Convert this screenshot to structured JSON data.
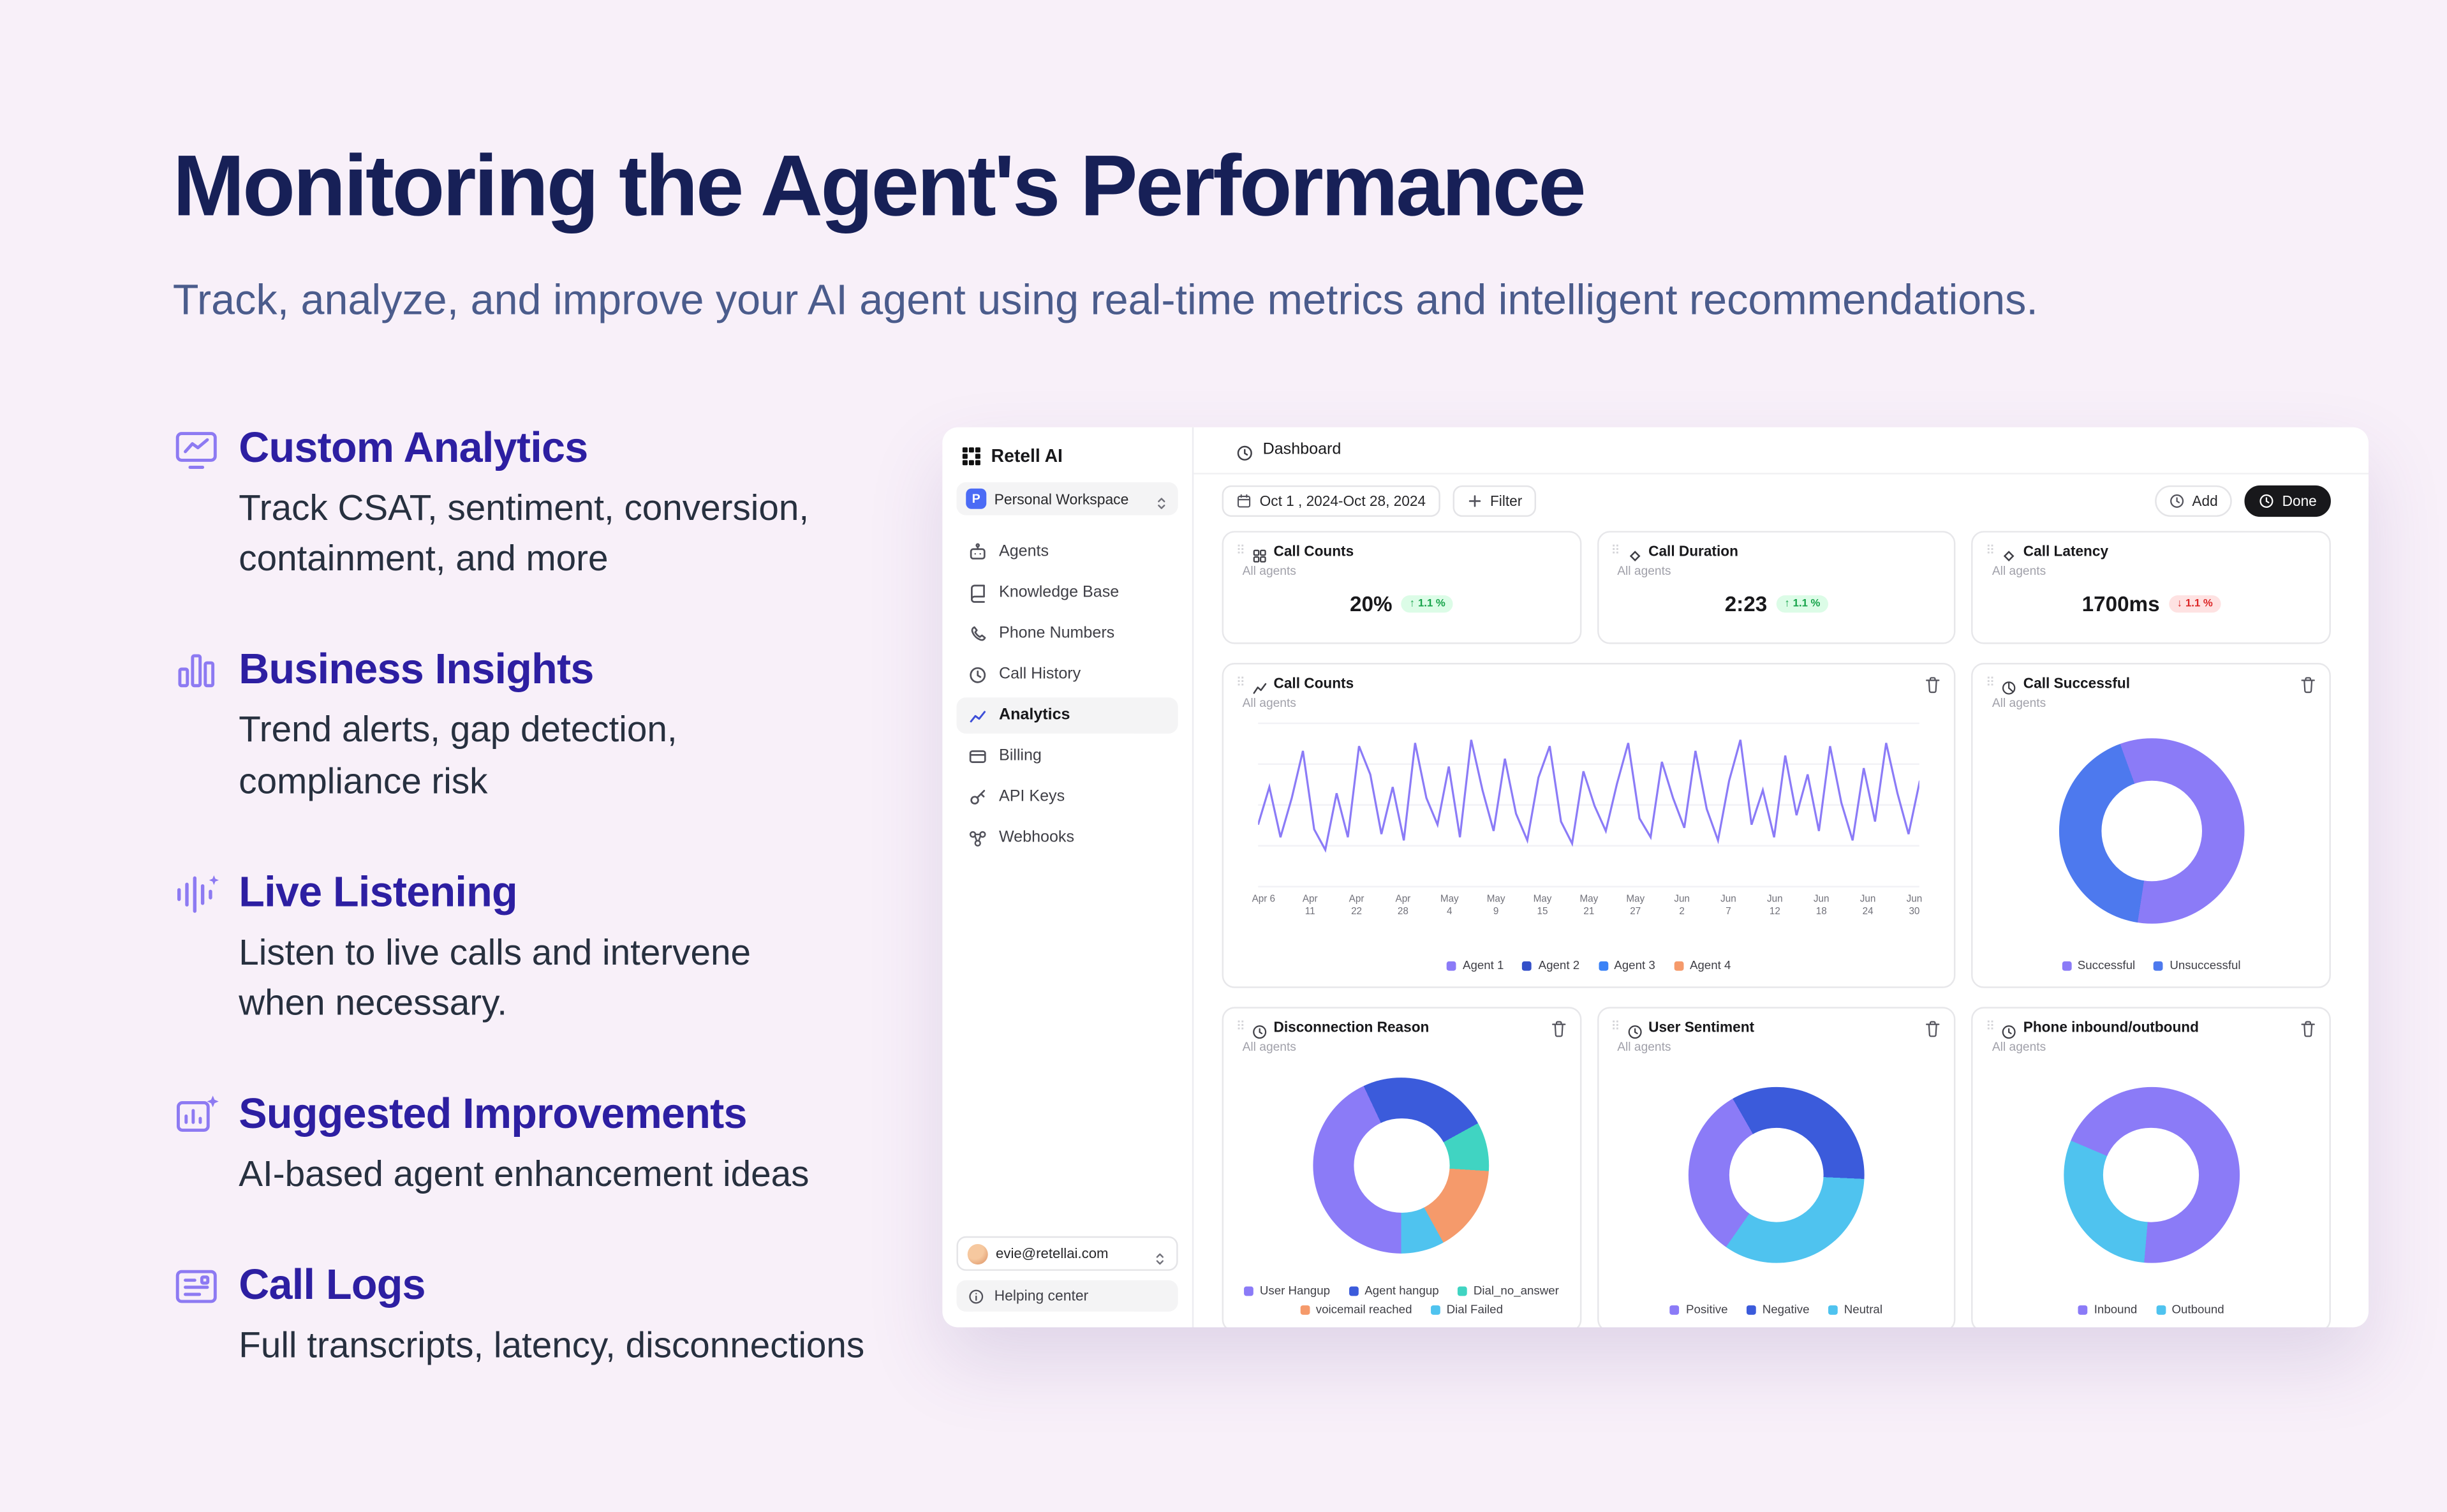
{
  "hero": {
    "title": "Monitoring the Agent's Performance",
    "subtitle": "Track, analyze, and improve your AI agent using real-time metrics and intelligent recommendations."
  },
  "features": [
    {
      "title": "Custom Analytics",
      "description": "Track CSAT, sentiment, conversion,\ncontainment, and more"
    },
    {
      "title": "Business Insights",
      "description": "Trend alerts, gap detection,\ncompliance risk"
    },
    {
      "title": "Live Listening",
      "description": "Listen to live calls and intervene\nwhen necessary."
    },
    {
      "title": "Suggested Improvements",
      "description": "AI-based agent enhancement ideas"
    },
    {
      "title": "Call Logs",
      "description": "Full transcripts, latency, disconnections"
    }
  ],
  "dashboard": {
    "brand": "Retell AI",
    "workspace": {
      "initial": "P",
      "name": "Personal Workspace"
    },
    "nav": [
      {
        "label": "Agents",
        "active": false
      },
      {
        "label": "Knowledge Base",
        "active": false
      },
      {
        "label": "Phone Numbers",
        "active": false
      },
      {
        "label": "Call History",
        "active": false
      },
      {
        "label": "Analytics",
        "active": true
      },
      {
        "label": "Billing",
        "active": false
      },
      {
        "label": "API Keys",
        "active": false
      },
      {
        "label": "Webhooks",
        "active": false
      }
    ],
    "account": {
      "email": "evie@retellai.com"
    },
    "help_label": "Helping center",
    "header": {
      "title": "Dashboard"
    },
    "toolbar": {
      "date_range": "Oct 1 , 2024-Oct 28, 2024",
      "filter_label": "Filter",
      "add_label": "Add",
      "done_label": "Done"
    },
    "stat_cards": [
      {
        "title": "Call Counts",
        "scope": "All agents",
        "value": "20%",
        "delta": "1.1 %",
        "trend": "up"
      },
      {
        "title": "Call Duration",
        "scope": "All agents",
        "value": "2:23",
        "delta": "1.1 %",
        "trend": "up"
      },
      {
        "title": "Call Latency",
        "scope": "All agents",
        "value": "1700ms",
        "delta": "1.1 %",
        "trend": "down"
      }
    ],
    "colors": {
      "accent_purple": "#8b7bf7",
      "positive_text": "#16a34a",
      "negative_text": "#dc2626"
    }
  },
  "chart_data": [
    {
      "type": "line",
      "title": "Call Counts",
      "scope": "All agents",
      "x_labels": [
        "Apr 6",
        "Apr 11",
        "Apr 22",
        "Apr 28",
        "May 4",
        "May 9",
        "May 15",
        "May 21",
        "May 27",
        "Jun 2",
        "Jun 7",
        "Jun 12",
        "Jun 18",
        "Jun 24",
        "Jun 30"
      ],
      "ylim": [
        0,
        100
      ],
      "grid": true,
      "legend_position": "bottom",
      "series": [
        {
          "name": "Agent 1",
          "color": "#8b7bf7",
          "values": [
            38,
            62,
            30,
            55,
            85,
            35,
            22,
            58,
            30,
            88,
            70,
            32,
            62,
            28,
            90,
            55,
            38,
            75,
            30,
            92,
            60,
            34,
            80,
            45,
            28,
            68,
            88,
            40,
            26,
            72,
            50,
            34,
            64,
            90,
            42,
            30,
            78,
            55,
            36,
            85,
            48,
            28,
            66,
            92,
            38,
            60,
            30,
            82,
            44,
            70,
            34,
            88,
            52,
            28,
            74,
            40,
            90,
            58,
            32,
            66
          ]
        },
        {
          "name": "Agent 2",
          "color": "#3450c9",
          "values": []
        },
        {
          "name": "Agent 3",
          "color": "#3b82f6",
          "values": []
        },
        {
          "name": "Agent 4",
          "color": "#f59a6b",
          "values": []
        }
      ]
    },
    {
      "type": "pie",
      "title": "Call Successful",
      "scope": "All agents",
      "rotate": 340,
      "legend_position": "bottom",
      "segments": [
        {
          "label": "Successful",
          "value": 58,
          "color": "#8b7bf7"
        },
        {
          "label": "Unsuccessful",
          "value": 42,
          "color": "#4d79ee"
        }
      ]
    },
    {
      "type": "pie",
      "title": "Disconnection Reason",
      "scope": "All agents",
      "rotate": 180,
      "legend_position": "bottom",
      "segments": [
        {
          "label": "User Hangup",
          "value": 43,
          "color": "#8b7bf7"
        },
        {
          "label": "Agent hangup",
          "value": 24,
          "color": "#3b5bdb"
        },
        {
          "label": "Dial_no_answer",
          "value": 9,
          "color": "#40d4c2"
        },
        {
          "label": "voicemail reached",
          "value": 16,
          "color": "#f59a6b"
        },
        {
          "label": "Dial Failed",
          "value": 8,
          "color": "#4fc3ef"
        }
      ]
    },
    {
      "type": "pie",
      "title": "User Sentiment",
      "scope": "All agents",
      "rotate": 215,
      "legend_position": "bottom",
      "segments": [
        {
          "label": "Positive",
          "value": 32,
          "color": "#8b7bf7"
        },
        {
          "label": "Negative",
          "value": 34,
          "color": "#3b5bdb"
        },
        {
          "label": "Neutral",
          "value": 34,
          "color": "#4fc3ef"
        }
      ]
    },
    {
      "type": "pie",
      "title": "Phone inbound/outbound",
      "scope": "All agents",
      "rotate": 293,
      "legend_position": "bottom",
      "segments": [
        {
          "label": "Inbound",
          "value": 70,
          "color": "#8b7bf7"
        },
        {
          "label": "Outbound",
          "value": 30,
          "color": "#4fc3ef"
        }
      ]
    }
  ]
}
